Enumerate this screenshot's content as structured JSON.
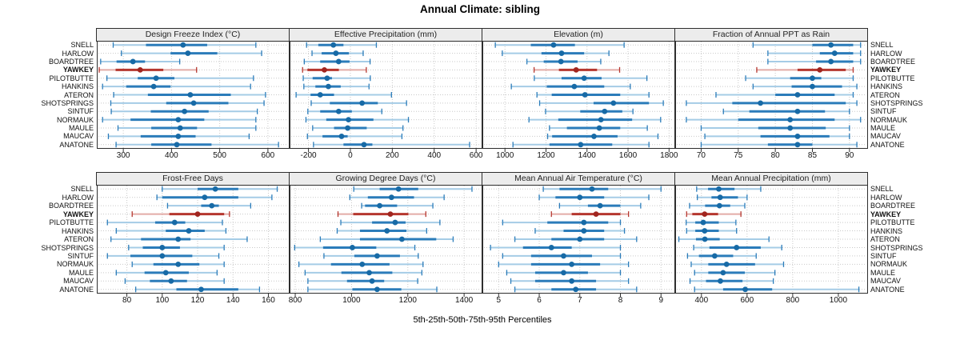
{
  "figure": {
    "title": "Annual Climate: sibling",
    "caption": "5th-25th-50th-75th-95th Percentiles"
  },
  "colors": {
    "blue_dot": "#176aa6",
    "blue_thick": "#2b7cba",
    "blue_light": "#a5cce6",
    "red_dot": "#a0251f",
    "red_thick": "#b5362e",
    "red_light": "#e3aba6",
    "strip_bg": "#ececec",
    "panel_border": "#2e2e2e",
    "grid": "#c9c9c9"
  },
  "chart_data": {
    "type": "dotplot-intervals",
    "title": "Annual Climate: sibling",
    "xlabel": "5th-25th-50th-75th-95th Percentiles",
    "legend_position": "none",
    "grid": "dotted",
    "percentiles": [
      5,
      25,
      50,
      75,
      95
    ],
    "sites": [
      "SNELL",
      "HARLOW",
      "BOARDTREE",
      "YAWKEY",
      "PILOTBUTTE",
      "HANKINS",
      "ATERON",
      "SHOTSPRINGS",
      "SINTUF",
      "NORMAUK",
      "MAULE",
      "MAUCAV",
      "ANATONE"
    ],
    "highlight_site": "YAWKEY",
    "panels": [
      {
        "title": "Design Freeze Index (°C)",
        "ticks": [
          300,
          400,
          500,
          600
        ],
        "domain": [
          245,
          645
        ],
        "values": {
          "SNELL": [
            279,
            347,
            424,
            474,
            575
          ],
          "HARLOW": [
            296,
            398,
            434,
            495,
            587
          ],
          "BOARDTREE": [
            253,
            286,
            320,
            345,
            417
          ],
          "YAWKEY": [
            250,
            284,
            335,
            383,
            452
          ],
          "PILOTBUTTE": [
            266,
            330,
            368,
            406,
            570
          ],
          "HANKINS": [
            257,
            306,
            363,
            398,
            564
          ],
          "ATERON": [
            280,
            351,
            439,
            523,
            595
          ],
          "SHOTSPRINGS": [
            274,
            389,
            446,
            518,
            592
          ],
          "SINTUF": [
            275,
            357,
            427,
            477,
            578
          ],
          "NORMAUK": [
            257,
            315,
            414,
            468,
            575
          ],
          "MAULE": [
            289,
            358,
            418,
            453,
            575
          ],
          "MAUCAV": [
            269,
            336,
            414,
            450,
            561
          ],
          "ANATONE": [
            285,
            358,
            411,
            483,
            622
          ]
        }
      },
      {
        "title": "Effective Precipitation (mm)",
        "ticks": [
          -200,
          0,
          200,
          400,
          600
        ],
        "domain": [
          -290,
          630
        ],
        "values": {
          "SNELL": [
            -209,
            -153,
            -81,
            -33,
            124
          ],
          "HARLOW": [
            -183,
            -137,
            -69,
            -7,
            61
          ],
          "BOARDTREE": [
            -220,
            -144,
            -56,
            -4,
            94
          ],
          "YAWKEY": [
            -228,
            -205,
            -124,
            -55,
            76
          ],
          "PILOTBUTTE": [
            -225,
            -180,
            -111,
            -88,
            95
          ],
          "HANKINS": [
            -222,
            -167,
            -105,
            -46,
            89
          ],
          "ATERON": [
            -259,
            -190,
            -144,
            -78,
            196
          ],
          "SHOTSPRINGS": [
            -187,
            -98,
            56,
            131,
            268
          ],
          "SINTUF": [
            -203,
            -144,
            -56,
            7,
            150
          ],
          "NORMAUK": [
            -212,
            -115,
            -9,
            110,
            277
          ],
          "MAULE": [
            -180,
            -78,
            -13,
            78,
            251
          ],
          "MAUCAV": [
            -205,
            -133,
            -42,
            -13,
            246
          ],
          "ANATONE": [
            -176,
            -33,
            65,
            105,
            569
          ]
        }
      },
      {
        "title": "Elevation (m)",
        "ticks": [
          1000,
          1200,
          1400,
          1600,
          1800
        ],
        "domain": [
          890,
          1830
        ],
        "values": {
          "SNELL": [
            953,
            1126,
            1237,
            1341,
            1581
          ],
          "HARLOW": [
            987,
            1178,
            1276,
            1386,
            1507
          ],
          "BOARDTREE": [
            1107,
            1189,
            1273,
            1354,
            1467
          ],
          "YAWKEY": [
            1142,
            1263,
            1347,
            1449,
            1559
          ],
          "PILOTBUTTE": [
            1143,
            1276,
            1386,
            1471,
            1692
          ],
          "HANKINS": [
            1031,
            1204,
            1338,
            1484,
            1611
          ],
          "ATERON": [
            1156,
            1228,
            1390,
            1562,
            1702
          ],
          "SHOTSPRINGS": [
            1169,
            1432,
            1529,
            1702,
            1772
          ],
          "SINTUF": [
            1198,
            1367,
            1486,
            1572,
            1624
          ],
          "NORMAUK": [
            1117,
            1260,
            1468,
            1620,
            1759
          ],
          "MAULE": [
            1217,
            1302,
            1460,
            1562,
            1694
          ],
          "MAUCAV": [
            1208,
            1230,
            1434,
            1549,
            1746
          ],
          "ANATONE": [
            1039,
            1217,
            1369,
            1523,
            1702
          ]
        }
      },
      {
        "title": "Fraction of Annual PPT as Rain",
        "ticks": [
          70,
          75,
          80,
          85,
          90
        ],
        "domain": [
          66.5,
          92.5
        ],
        "values": {
          "SNELL": [
            77,
            85,
            87.5,
            90.5,
            91.5
          ],
          "HARLOW": [
            79,
            86,
            88,
            90.5,
            91.5
          ],
          "BOARDTREE": [
            79,
            85.5,
            87.5,
            90.5,
            91.5
          ],
          "YAWKEY": [
            77.5,
            83,
            86,
            89.5,
            90.5
          ],
          "PILOTBUTTE": [
            76,
            82,
            85,
            86.2,
            90.5
          ],
          "HANKINS": [
            77,
            82.2,
            85,
            89,
            91
          ],
          "ATERON": [
            72,
            80,
            83,
            88,
            90.5
          ],
          "SHOTSPRINGS": [
            68,
            74.2,
            78,
            89.5,
            91
          ],
          "SINTUF": [
            73,
            76.5,
            83,
            86.7,
            90
          ],
          "NORMAUK": [
            68,
            75,
            82,
            88,
            91.5
          ],
          "MAULE": [
            70,
            77.7,
            82,
            86.8,
            90
          ],
          "MAUCAV": [
            70.5,
            78,
            83,
            87.3,
            90
          ],
          "ANATONE": [
            70,
            79,
            83,
            85,
            91
          ]
        }
      },
      {
        "title": "Frost-Free Days",
        "ticks": [
          80,
          100,
          120,
          140,
          160
        ],
        "domain": [
          63,
          172
        ],
        "values": {
          "SNELL": [
            100,
            120,
            130,
            143,
            165
          ],
          "HARLOW": [
            97,
            100,
            124,
            143,
            162
          ],
          "BOARDTREE": [
            103,
            122,
            128,
            132,
            150
          ],
          "YAWKEY": [
            83,
            104,
            120,
            135,
            138
          ],
          "PILOTBUTTE": [
            69,
            96,
            107,
            113,
            134
          ],
          "HANKINS": [
            74,
            102,
            115,
            124,
            136
          ],
          "ATERON": [
            71,
            88,
            109,
            116,
            148
          ],
          "SHOTSPRINGS": [
            81,
            89,
            100,
            110,
            135
          ],
          "SINTUF": [
            69,
            82,
            100,
            117,
            132
          ],
          "NORMAUK": [
            83,
            95,
            109,
            121,
            135
          ],
          "MAULE": [
            74,
            90,
            102,
            115,
            131
          ],
          "MAUCAV": [
            79,
            93,
            105,
            114,
            135
          ],
          "ANATONE": [
            85,
            108,
            122,
            143,
            155
          ]
        }
      },
      {
        "title": "Growing Degree Days (°C)",
        "ticks": [
          800,
          1000,
          1200,
          1400
        ],
        "domain": [
          780,
          1465
        ],
        "values": {
          "SNELL": [
            1008,
            1100,
            1167,
            1237,
            1428
          ],
          "HARLOW": [
            994,
            1058,
            1142,
            1222,
            1329
          ],
          "BOARDTREE": [
            1036,
            1048,
            1100,
            1162,
            1289
          ],
          "YAWKEY": [
            952,
            1006,
            1138,
            1202,
            1264
          ],
          "PILOTBUTTE": [
            962,
            1073,
            1155,
            1192,
            1314
          ],
          "HANKINS": [
            949,
            1030,
            1126,
            1195,
            1267
          ],
          "ATERON": [
            889,
            1030,
            1179,
            1301,
            1361
          ],
          "SHOTSPRINGS": [
            798,
            899,
            1003,
            1088,
            1225
          ],
          "SINTUF": [
            902,
            1010,
            1091,
            1172,
            1237
          ],
          "NORMAUK": [
            813,
            927,
            1038,
            1135,
            1254
          ],
          "MAULE": [
            835,
            964,
            1063,
            1145,
            1250
          ],
          "MAUCAV": [
            845,
            984,
            1073,
            1116,
            1235
          ],
          "ANATONE": [
            845,
            1003,
            1091,
            1177,
            1303
          ]
        }
      },
      {
        "title": "Mean Annual Air Temperature (°C)",
        "ticks": [
          5,
          6,
          7,
          8,
          9
        ],
        "domain": [
          4.6,
          9.35
        ],
        "values": {
          "SNELL": [
            6.1,
            6.5,
            7.3,
            7.7,
            9.0
          ],
          "HARLOW": [
            6.0,
            6.4,
            7.0,
            7.6,
            8.7
          ],
          "BOARDTREE": [
            6.5,
            7.2,
            7.5,
            8.0,
            8.5
          ],
          "YAWKEY": [
            6.3,
            6.8,
            7.4,
            8.0,
            8.2
          ],
          "PILOTBUTTE": [
            5.1,
            6.2,
            7.1,
            7.7,
            8.0
          ],
          "HANKINS": [
            5.9,
            6.6,
            7.1,
            7.6,
            8.1
          ],
          "ATERON": [
            5.4,
            6.3,
            7.0,
            7.6,
            8.4
          ],
          "SHOTSPRINGS": [
            4.8,
            5.6,
            6.3,
            6.8,
            8.0
          ],
          "SINTUF": [
            5.1,
            5.8,
            6.6,
            7.3,
            8.0
          ],
          "NORMAUK": [
            5.0,
            5.8,
            6.8,
            7.5,
            8.2
          ],
          "MAULE": [
            5.2,
            5.9,
            6.6,
            7.2,
            8.0
          ],
          "MAUCAV": [
            5.3,
            5.9,
            6.8,
            7.4,
            8.2
          ],
          "ANATONE": [
            5.4,
            6.3,
            6.9,
            7.4,
            8.4
          ]
        }
      },
      {
        "title": "Mean Annual Precipitation (mm)",
        "ticks": [
          400,
          600,
          800,
          1000
        ],
        "domain": [
          285,
          1130
        ],
        "values": {
          "SNELL": [
            379,
            429,
            476,
            545,
            660
          ],
          "HARLOW": [
            382,
            444,
            482,
            560,
            600
          ],
          "BOARDTREE": [
            348,
            416,
            479,
            526,
            590
          ],
          "YAWKEY": [
            335,
            360,
            414,
            473,
            573
          ],
          "PILOTBUTTE": [
            333,
            373,
            408,
            476,
            551
          ],
          "HANKINS": [
            335,
            373,
            414,
            476,
            554
          ],
          "ATERON": [
            301,
            376,
            415,
            480,
            696
          ],
          "SHOTSPRINGS": [
            366,
            435,
            554,
            660,
            752
          ],
          "SINTUF": [
            339,
            389,
            458,
            539,
            640
          ],
          "NORMAUK": [
            355,
            430,
            510,
            635,
            760
          ],
          "MAULE": [
            370,
            430,
            495,
            590,
            722
          ],
          "MAUCAV": [
            350,
            420,
            483,
            580,
            715
          ],
          "ANATONE": [
            370,
            495,
            592,
            710,
            1090
          ]
        }
      }
    ]
  }
}
